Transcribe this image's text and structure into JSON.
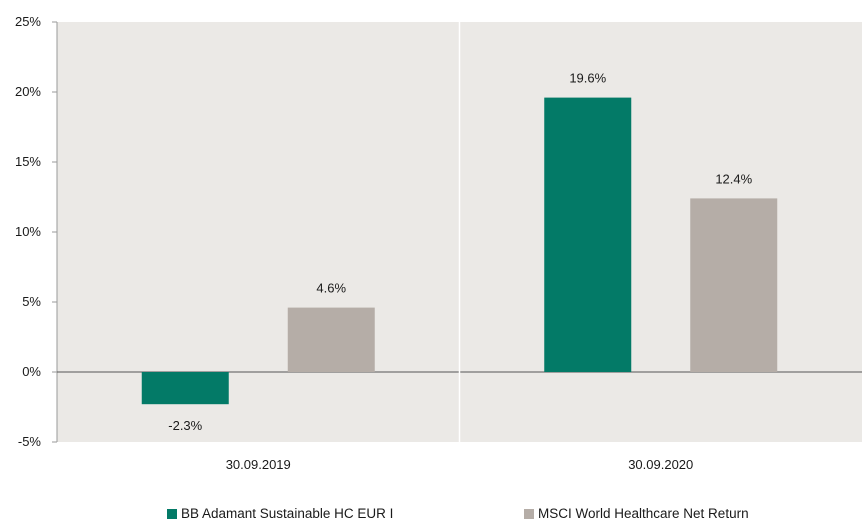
{
  "chart_data": {
    "type": "bar",
    "categories": [
      "30.09.2019",
      "30.09.2020"
    ],
    "series": [
      {
        "name": "BB Adamant Sustainable HC EUR I",
        "values": [
          -2.3,
          19.6
        ],
        "labels": [
          "-2.3%",
          "19.6%"
        ],
        "color": "#037a67"
      },
      {
        "name": "MSCI World Healthcare Net Return",
        "values": [
          4.6,
          12.4
        ],
        "labels": [
          "4.6%",
          "12.4%"
        ],
        "color": "#b5ada7"
      }
    ],
    "ylim": [
      -5,
      25
    ],
    "yticks": [
      25,
      20,
      15,
      10,
      5,
      0,
      -5
    ],
    "ytick_labels": [
      "25%",
      "20%",
      "15%",
      "10%",
      "5%",
      "0%",
      "-5%"
    ],
    "title": "",
    "xlabel": "",
    "ylabel": "",
    "legend_position": "bottom",
    "plot_background": "#ebe9e6",
    "grid": false
  }
}
